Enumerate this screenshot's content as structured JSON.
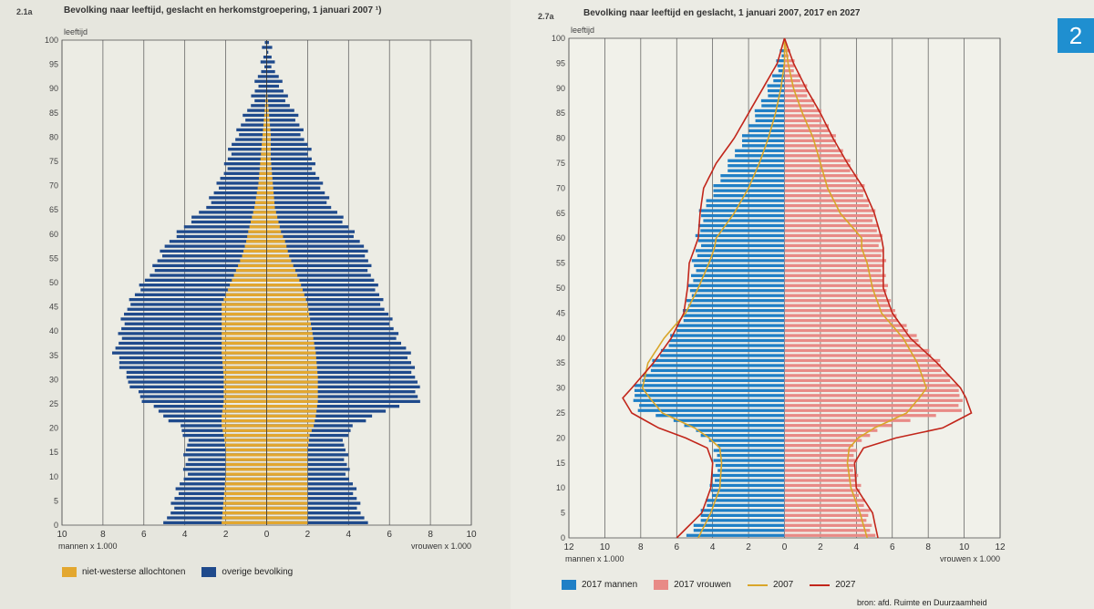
{
  "left": {
    "fig_number": "2.1a",
    "title": "Bevolking naar leeftijd, geslacht en herkomstgroepering, 1 januari 2007 ¹)",
    "legend": [
      {
        "label": "niet-westerse allochtonen",
        "color": "#e3a72f"
      },
      {
        "label": "overige bevolking",
        "color": "#1f4a8c"
      }
    ]
  },
  "right": {
    "fig_number": "2.7a",
    "title": "Bevolking naar leeftijd en geslacht, 1 januari 2007, 2017 en 2027",
    "legend": [
      {
        "label": "2017 mannen",
        "color": "#1f7fc6",
        "kind": "box"
      },
      {
        "label": "2017 vrouwen",
        "color": "#e88a86",
        "kind": "box"
      },
      {
        "label": "2007",
        "color": "#d9a62a",
        "kind": "line"
      },
      {
        "label": "2027",
        "color": "#c2261b",
        "kind": "line"
      }
    ],
    "chapter_badge": "2",
    "source": "bron: afd. Ruimte en Duurzaamheid"
  },
  "chart_data": [
    {
      "type": "bar",
      "title": "Bevolking naar leeftijd, geslacht en herkomstgroepering, 1 januari 2007 ¹)",
      "ylabel": "leeftijd",
      "xlabel_left": "mannen x 1.000",
      "xlabel_right": "vrouwen x 1.000",
      "xlim": [
        -10,
        10
      ],
      "ylim": [
        0,
        100
      ],
      "x_ticks": [
        "10",
        "8",
        "6",
        "4",
        "2",
        "0",
        "2",
        "4",
        "6",
        "8",
        "10"
      ],
      "y_ticks": [
        "0",
        "5",
        "10",
        "15",
        "20",
        "25",
        "30",
        "35",
        "40",
        "45",
        "50",
        "55",
        "60",
        "65",
        "70",
        "75",
        "80",
        "85",
        "90",
        "95",
        "100"
      ],
      "grid": true,
      "legend_position": "bottom-left",
      "orientation": "horizontal-population-pyramid",
      "age_points": [
        0,
        5,
        10,
        15,
        18,
        20,
        22,
        25,
        30,
        35,
        40,
        45,
        50,
        55,
        58,
        60,
        65,
        70,
        75,
        80,
        85,
        90,
        95,
        100
      ],
      "series": [
        {
          "name": "overige bevolking",
          "color": "#1f4a8c",
          "side": "mannen",
          "values": [
            -4.9,
            -4.5,
            -4.0,
            -3.9,
            -4.0,
            -4.3,
            -5.0,
            -6.0,
            -6.9,
            -7.4,
            -7.1,
            -6.8,
            -5.9,
            -5.2,
            -4.8,
            -4.3,
            -3.0,
            -2.3,
            -1.9,
            -1.5,
            -0.9,
            -0.5,
            -0.2,
            0
          ]
        },
        {
          "name": "overige bevolking",
          "color": "#1f4a8c",
          "side": "vrouwen",
          "values": [
            4.8,
            4.4,
            4.0,
            3.8,
            3.9,
            4.3,
            5.1,
            7.4,
            7.3,
            6.9,
            6.2,
            5.7,
            5.2,
            4.9,
            4.6,
            4.2,
            3.2,
            2.6,
            2.2,
            1.8,
            1.3,
            0.7,
            0.3,
            0
          ]
        },
        {
          "name": "niet-westerse allochtonen",
          "color": "#e3a72f",
          "side": "mannen",
          "values": [
            -2.2,
            -2.1,
            -2.0,
            -2.0,
            -2.1,
            -2.2,
            -2.2,
            -2.1,
            -2.1,
            -2.2,
            -2.2,
            -2.2,
            -1.7,
            -1.2,
            -1.0,
            -0.9,
            -0.6,
            -0.4,
            -0.3,
            -0.2,
            -0.1,
            0,
            0,
            0
          ]
        },
        {
          "name": "niet-westerse allochtonen",
          "color": "#e3a72f",
          "side": "vrouwen",
          "values": [
            2.0,
            2.0,
            2.0,
            2.0,
            2.1,
            2.3,
            2.4,
            2.5,
            2.5,
            2.4,
            2.2,
            2.0,
            1.6,
            1.1,
            0.9,
            0.7,
            0.4,
            0.3,
            0.2,
            0.2,
            0.1,
            0,
            0,
            0
          ]
        }
      ]
    },
    {
      "type": "bar",
      "title": "Bevolking naar leeftijd en geslacht, 1 januari 2007, 2017 en 2027",
      "ylabel": "leeftijd",
      "xlabel_left": "mannen x 1.000",
      "xlabel_right": "vrouwen x 1.000",
      "xlim": [
        -12,
        12
      ],
      "ylim": [
        0,
        100
      ],
      "x_ticks": [
        "12",
        "10",
        "8",
        "6",
        "4",
        "2",
        "0",
        "2",
        "4",
        "6",
        "8",
        "10",
        "12"
      ],
      "y_ticks": [
        "0",
        "5",
        "10",
        "15",
        "20",
        "25",
        "30",
        "35",
        "40",
        "45",
        "50",
        "55",
        "60",
        "65",
        "70",
        "75",
        "80",
        "85",
        "90",
        "95",
        "100"
      ],
      "grid": true,
      "legend_position": "bottom-left",
      "orientation": "horizontal-population-pyramid",
      "age_points": [
        0,
        5,
        10,
        15,
        18,
        20,
        22,
        25,
        28,
        30,
        35,
        40,
        45,
        50,
        55,
        58,
        60,
        65,
        70,
        75,
        80,
        85,
        90,
        95,
        100
      ],
      "series": [
        {
          "name": "2017 mannen",
          "color": "#1f7fc6",
          "kind": "bars",
          "values": [
            -5.3,
            -4.5,
            -4.0,
            -3.8,
            -3.9,
            -4.5,
            -5.5,
            -8.0,
            -8.5,
            -8.2,
            -7.2,
            -6.2,
            -5.5,
            -5.2,
            -5.0,
            -4.8,
            -4.8,
            -4.6,
            -3.8,
            -3.0,
            -2.2,
            -1.5,
            -0.8,
            -0.3,
            0
          ]
        },
        {
          "name": "2017 vrouwen",
          "color": "#e88a86",
          "kind": "bars",
          "values": [
            4.9,
            4.6,
            4.1,
            3.9,
            4.0,
            4.6,
            5.9,
            9.7,
            9.9,
            9.5,
            8.5,
            7.2,
            6.0,
            5.6,
            5.5,
            5.4,
            5.3,
            4.9,
            4.3,
            3.5,
            2.7,
            1.9,
            1.1,
            0.4,
            0
          ]
        },
        {
          "name": "2007",
          "color": "#d9a62a",
          "kind": "line",
          "men": [
            -4.8,
            -4.1,
            -3.6,
            -3.5,
            -3.6,
            -4.2,
            -5.0,
            -6.8,
            -7.5,
            -7.9,
            -7.6,
            -6.7,
            -5.5,
            -4.8,
            -4.2,
            -3.9,
            -3.8,
            -2.8,
            -2.0,
            -1.4,
            -0.9,
            -0.5,
            -0.2,
            0,
            0
          ],
          "women": [
            4.6,
            4.2,
            3.7,
            3.5,
            3.6,
            4.1,
            5.0,
            6.8,
            7.5,
            7.9,
            7.4,
            6.6,
            5.4,
            4.9,
            4.6,
            4.3,
            4.3,
            3.1,
            2.4,
            2.0,
            1.6,
            1.0,
            0.5,
            0.2,
            0
          ]
        },
        {
          "name": "2027",
          "color": "#c2261b",
          "kind": "line",
          "men": [
            -6.0,
            -4.6,
            -4.1,
            -4.0,
            -4.3,
            -5.5,
            -7.0,
            -8.5,
            -9.0,
            -8.5,
            -7.3,
            -6.3,
            -5.6,
            -5.4,
            -5.3,
            -5.0,
            -4.8,
            -4.7,
            -4.5,
            -3.8,
            -2.8,
            -2.0,
            -1.2,
            -0.4,
            0
          ]
        },
        {
          "name": "2027 vrouwen",
          "color": "#c2261b",
          "kind": "line-only",
          "women": [
            5.2,
            4.9,
            4.0,
            3.9,
            4.4,
            6.2,
            8.8,
            10.4,
            10.1,
            9.8,
            8.5,
            7.0,
            6.0,
            5.5,
            5.5,
            5.5,
            5.4,
            5.0,
            4.4,
            3.5,
            2.7,
            2.0,
            1.2,
            0.5,
            0
          ]
        }
      ]
    }
  ]
}
